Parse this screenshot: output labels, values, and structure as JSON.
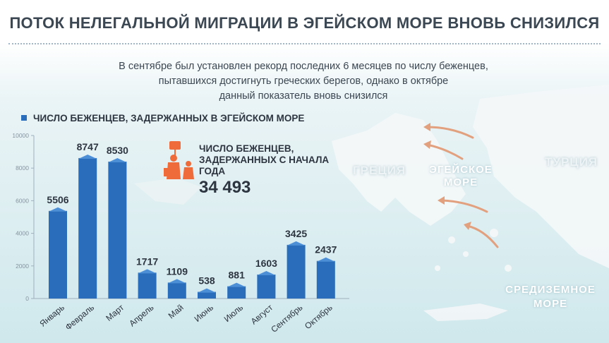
{
  "header": {
    "title": "ПОТОК НЕЛЕГАЛЬНОЙ МИГРАЦИИ В ЭГЕЙСКОМ МОРЕ ВНОВЬ СНИЗИЛСЯ",
    "subtitle_lines": [
      "В сентябре был установлен рекорд последних 6 месяцев по числу беженцев,",
      "пытавшихся достигнуть греческих берегов, однако в октябре",
      "данный показатель вновь  снизился"
    ]
  },
  "map_labels": {
    "greece": "ГРЕЦИЯ",
    "aegean_line1": "ЭГЕЙСКОЕ",
    "aegean_line2": "МОРЕ",
    "turkey": "ТУРЦИЯ",
    "med_line1": "СРЕДИЗЕМНОЕ",
    "med_line2": "МОРЕ"
  },
  "total": {
    "label_line1": "ЧИСЛО БЕЖЕНЦЕВ,",
    "label_line2": "ЗАДЕРЖАННЫХ С НАЧАЛА",
    "label_line3": "ГОДА",
    "value": "34 493",
    "icon": "family-refugee-icon"
  },
  "colors": {
    "bar": "#2a6ebb",
    "bar_top": "#4d8fd6",
    "icon": "#ef6c3a",
    "arrow": "#e2a07e"
  },
  "chart_data": {
    "type": "bar",
    "title": "ЧИСЛО БЕЖЕНЦЕВ, ЗАДЕРЖАННЫХ В ЭГЕЙСКОМ МОРЕ",
    "categories": [
      "Январь",
      "Февраль",
      "Март",
      "Апрель",
      "Май",
      "Июнь",
      "Июль",
      "Август",
      "Сентябрь",
      "Октябрь"
    ],
    "values": [
      5506,
      8747,
      8530,
      1717,
      1109,
      538,
      881,
      1603,
      3425,
      2437
    ],
    "value_labels": [
      "5506",
      "8747",
      "8530",
      "1717",
      "1109",
      "538",
      "881",
      "1603",
      "3425",
      "2437"
    ],
    "yticks": [
      0,
      2000,
      4000,
      6000,
      8000,
      10000
    ],
    "ytick_labels": [
      "0",
      "2000",
      "4000",
      "6000",
      "8000",
      "10000"
    ],
    "ylim": [
      0,
      10000
    ],
    "xlabel": "",
    "ylabel": "",
    "grid": false
  }
}
